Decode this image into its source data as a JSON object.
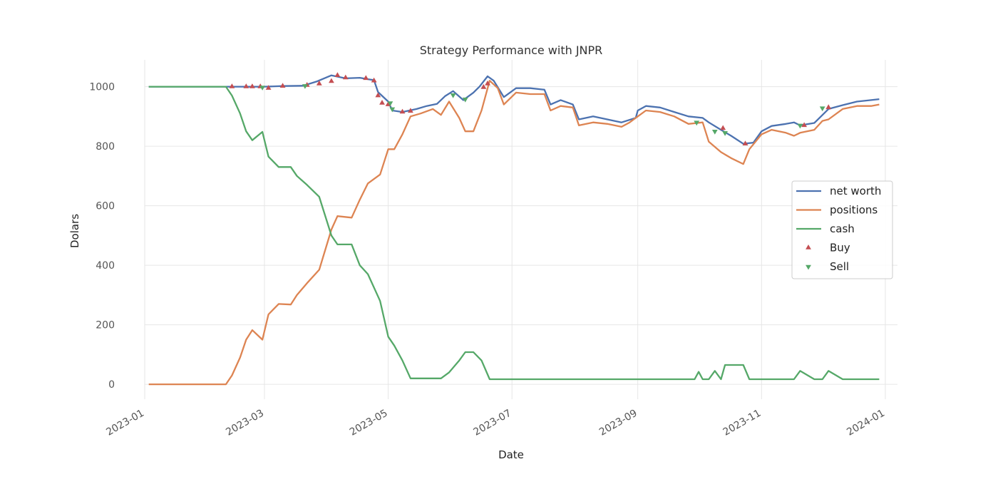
{
  "chart_data": {
    "type": "line",
    "title": "Strategy Performance with JNPR",
    "xlabel": "Date",
    "ylabel": "Dolars",
    "x_range": [
      "2023-01-01",
      "2024-01-07"
    ],
    "ylim": [
      -50,
      1090
    ],
    "x_ticks": [
      "2023-01-01",
      "2023-03-01",
      "2023-05-01",
      "2023-07-01",
      "2023-09-01",
      "2023-11-01",
      "2024-01-01"
    ],
    "x_tick_labels": [
      "2023-01",
      "2023-03",
      "2023-05",
      "2023-07",
      "2023-09",
      "2023-11",
      "2024-01"
    ],
    "y_ticks": [
      0,
      200,
      400,
      600,
      800,
      1000
    ],
    "grid": true,
    "legend_position": "center-right",
    "series": [
      {
        "name": "net worth",
        "color": "#4c72b0",
        "points": [
          [
            "2023-01-03",
            1000
          ],
          [
            "2023-02-10",
            1000
          ],
          [
            "2023-02-20",
            1000
          ],
          [
            "2023-03-01",
            1000
          ],
          [
            "2023-03-10",
            1002
          ],
          [
            "2023-03-20",
            1003
          ],
          [
            "2023-03-27",
            1018
          ],
          [
            "2023-04-03",
            1038
          ],
          [
            "2023-04-10",
            1028
          ],
          [
            "2023-04-17",
            1030
          ],
          [
            "2023-04-21",
            1025
          ],
          [
            "2023-04-24",
            1022
          ],
          [
            "2023-04-26",
            982
          ],
          [
            "2023-05-01",
            950
          ],
          [
            "2023-05-03",
            920
          ],
          [
            "2023-05-08",
            915
          ],
          [
            "2023-05-15",
            925
          ],
          [
            "2023-05-20",
            935
          ],
          [
            "2023-05-25",
            942
          ],
          [
            "2023-05-29",
            968
          ],
          [
            "2023-06-02",
            985
          ],
          [
            "2023-06-07",
            955
          ],
          [
            "2023-06-12",
            980
          ],
          [
            "2023-06-15",
            1000
          ],
          [
            "2023-06-19",
            1035
          ],
          [
            "2023-06-22",
            1020
          ],
          [
            "2023-06-27",
            965
          ],
          [
            "2023-07-03",
            995
          ],
          [
            "2023-07-10",
            995
          ],
          [
            "2023-07-17",
            990
          ],
          [
            "2023-07-20",
            940
          ],
          [
            "2023-07-25",
            955
          ],
          [
            "2023-07-31",
            940
          ],
          [
            "2023-08-03",
            890
          ],
          [
            "2023-08-10",
            900
          ],
          [
            "2023-08-17",
            890
          ],
          [
            "2023-08-24",
            880
          ],
          [
            "2023-08-31",
            895
          ],
          [
            "2023-09-01",
            920
          ],
          [
            "2023-09-05",
            935
          ],
          [
            "2023-09-12",
            930
          ],
          [
            "2023-09-19",
            915
          ],
          [
            "2023-09-26",
            900
          ],
          [
            "2023-10-03",
            895
          ],
          [
            "2023-10-06",
            880
          ],
          [
            "2023-10-12",
            855
          ],
          [
            "2023-10-17",
            835
          ],
          [
            "2023-10-23",
            808
          ],
          [
            "2023-10-28",
            812
          ],
          [
            "2023-11-01",
            850
          ],
          [
            "2023-11-06",
            868
          ],
          [
            "2023-11-13",
            875
          ],
          [
            "2023-11-17",
            880
          ],
          [
            "2023-11-20",
            870
          ],
          [
            "2023-11-27",
            878
          ],
          [
            "2023-12-04",
            925
          ],
          [
            "2023-12-11",
            938
          ],
          [
            "2023-12-18",
            950
          ],
          [
            "2023-12-25",
            955
          ],
          [
            "2023-12-29",
            958
          ]
        ]
      },
      {
        "name": "positions",
        "color": "#dd8452",
        "points": [
          [
            "2023-01-03",
            0
          ],
          [
            "2023-02-10",
            0
          ],
          [
            "2023-02-13",
            30
          ],
          [
            "2023-02-17",
            90
          ],
          [
            "2023-02-20",
            150
          ],
          [
            "2023-02-23",
            182
          ],
          [
            "2023-02-28",
            150
          ],
          [
            "2023-03-03",
            235
          ],
          [
            "2023-03-08",
            270
          ],
          [
            "2023-03-14",
            268
          ],
          [
            "2023-03-17",
            300
          ],
          [
            "2023-03-22",
            340
          ],
          [
            "2023-03-28",
            385
          ],
          [
            "2023-04-03",
            520
          ],
          [
            "2023-04-06",
            565
          ],
          [
            "2023-04-13",
            560
          ],
          [
            "2023-04-17",
            620
          ],
          [
            "2023-04-21",
            675
          ],
          [
            "2023-04-27",
            705
          ],
          [
            "2023-05-01",
            790
          ],
          [
            "2023-05-04",
            790
          ],
          [
            "2023-05-08",
            840
          ],
          [
            "2023-05-12",
            900
          ],
          [
            "2023-05-17",
            910
          ],
          [
            "2023-05-23",
            925
          ],
          [
            "2023-05-27",
            905
          ],
          [
            "2023-05-31",
            950
          ],
          [
            "2023-06-05",
            895
          ],
          [
            "2023-06-08",
            850
          ],
          [
            "2023-06-12",
            850
          ],
          [
            "2023-06-16",
            920
          ],
          [
            "2023-06-20",
            1020
          ],
          [
            "2023-06-24",
            995
          ],
          [
            "2023-06-27",
            940
          ],
          [
            "2023-07-03",
            980
          ],
          [
            "2023-07-10",
            975
          ],
          [
            "2023-07-17",
            975
          ],
          [
            "2023-07-20",
            920
          ],
          [
            "2023-07-25",
            935
          ],
          [
            "2023-07-31",
            930
          ],
          [
            "2023-08-03",
            870
          ],
          [
            "2023-08-10",
            880
          ],
          [
            "2023-08-17",
            875
          ],
          [
            "2023-08-24",
            865
          ],
          [
            "2023-08-28",
            880
          ],
          [
            "2023-08-31",
            895
          ],
          [
            "2023-09-05",
            920
          ],
          [
            "2023-09-12",
            915
          ],
          [
            "2023-09-19",
            900
          ],
          [
            "2023-09-26",
            875
          ],
          [
            "2023-10-03",
            880
          ],
          [
            "2023-10-06",
            815
          ],
          [
            "2023-10-12",
            780
          ],
          [
            "2023-10-17",
            760
          ],
          [
            "2023-10-23",
            740
          ],
          [
            "2023-10-26",
            790
          ],
          [
            "2023-11-01",
            840
          ],
          [
            "2023-11-06",
            855
          ],
          [
            "2023-11-13",
            845
          ],
          [
            "2023-11-17",
            835
          ],
          [
            "2023-11-20",
            845
          ],
          [
            "2023-11-27",
            855
          ],
          [
            "2023-12-01",
            885
          ],
          [
            "2023-12-04",
            890
          ],
          [
            "2023-12-11",
            925
          ],
          [
            "2023-12-18",
            935
          ],
          [
            "2023-12-25",
            935
          ],
          [
            "2023-12-29",
            940
          ]
        ]
      },
      {
        "name": "cash",
        "color": "#55a868",
        "points": [
          [
            "2023-01-03",
            1000
          ],
          [
            "2023-02-10",
            1000
          ],
          [
            "2023-02-13",
            970
          ],
          [
            "2023-02-17",
            910
          ],
          [
            "2023-02-20",
            850
          ],
          [
            "2023-02-23",
            820
          ],
          [
            "2023-02-28",
            848
          ],
          [
            "2023-03-03",
            765
          ],
          [
            "2023-03-08",
            730
          ],
          [
            "2023-03-14",
            730
          ],
          [
            "2023-03-17",
            700
          ],
          [
            "2023-03-22",
            670
          ],
          [
            "2023-03-28",
            630
          ],
          [
            "2023-04-03",
            500
          ],
          [
            "2023-04-06",
            470
          ],
          [
            "2023-04-13",
            470
          ],
          [
            "2023-04-17",
            400
          ],
          [
            "2023-04-21",
            370
          ],
          [
            "2023-04-27",
            280
          ],
          [
            "2023-05-01",
            160
          ],
          [
            "2023-05-04",
            130
          ],
          [
            "2023-05-08",
            80
          ],
          [
            "2023-05-12",
            20
          ],
          [
            "2023-05-17",
            20
          ],
          [
            "2023-05-23",
            20
          ],
          [
            "2023-05-27",
            20
          ],
          [
            "2023-05-31",
            40
          ],
          [
            "2023-06-05",
            80
          ],
          [
            "2023-06-08",
            108
          ],
          [
            "2023-06-12",
            108
          ],
          [
            "2023-06-16",
            80
          ],
          [
            "2023-06-20",
            17
          ],
          [
            "2023-07-03",
            17
          ],
          [
            "2023-07-20",
            17
          ],
          [
            "2023-08-03",
            17
          ],
          [
            "2023-08-31",
            17
          ],
          [
            "2023-09-19",
            17
          ],
          [
            "2023-09-29",
            17
          ],
          [
            "2023-10-01",
            42
          ],
          [
            "2023-10-03",
            17
          ],
          [
            "2023-10-06",
            17
          ],
          [
            "2023-10-09",
            45
          ],
          [
            "2023-10-12",
            17
          ],
          [
            "2023-10-14",
            65
          ],
          [
            "2023-10-23",
            65
          ],
          [
            "2023-10-26",
            17
          ],
          [
            "2023-11-01",
            17
          ],
          [
            "2023-11-17",
            17
          ],
          [
            "2023-11-20",
            45
          ],
          [
            "2023-11-27",
            17
          ],
          [
            "2023-12-01",
            17
          ],
          [
            "2023-12-04",
            45
          ],
          [
            "2023-12-11",
            17
          ],
          [
            "2023-12-29",
            17
          ]
        ]
      }
    ],
    "markers": [
      {
        "name": "Buy",
        "shape": "triangle-up",
        "color": "#c44e52",
        "points": [
          [
            "2023-02-13",
            1000
          ],
          [
            "2023-02-20",
            1000
          ],
          [
            "2023-02-23",
            1000
          ],
          [
            "2023-02-27",
            1000
          ],
          [
            "2023-03-03",
            995
          ],
          [
            "2023-03-10",
            1002
          ],
          [
            "2023-03-22",
            1005
          ],
          [
            "2023-03-28",
            1010
          ],
          [
            "2023-04-03",
            1018
          ],
          [
            "2023-04-06",
            1038
          ],
          [
            "2023-04-10",
            1030
          ],
          [
            "2023-04-20",
            1028
          ],
          [
            "2023-04-24",
            1020
          ],
          [
            "2023-04-26",
            970
          ],
          [
            "2023-04-28",
            945
          ],
          [
            "2023-05-01",
            940
          ],
          [
            "2023-05-08",
            915
          ],
          [
            "2023-05-12",
            918
          ],
          [
            "2023-06-17",
            998
          ],
          [
            "2023-06-19",
            1010
          ],
          [
            "2023-10-13",
            860
          ],
          [
            "2023-10-24",
            808
          ],
          [
            "2023-11-22",
            870
          ],
          [
            "2023-12-04",
            930
          ]
        ]
      },
      {
        "name": "Sell",
        "shape": "triangle-down",
        "color": "#55a868",
        "points": [
          [
            "2023-02-28",
            998
          ],
          [
            "2023-03-21",
            1003
          ],
          [
            "2023-05-02",
            945
          ],
          [
            "2023-05-03",
            925
          ],
          [
            "2023-06-02",
            972
          ],
          [
            "2023-06-08",
            958
          ],
          [
            "2023-09-30",
            880
          ],
          [
            "2023-10-09",
            850
          ],
          [
            "2023-10-14",
            845
          ],
          [
            "2023-11-20",
            870
          ],
          [
            "2023-12-01",
            928
          ]
        ]
      }
    ]
  }
}
